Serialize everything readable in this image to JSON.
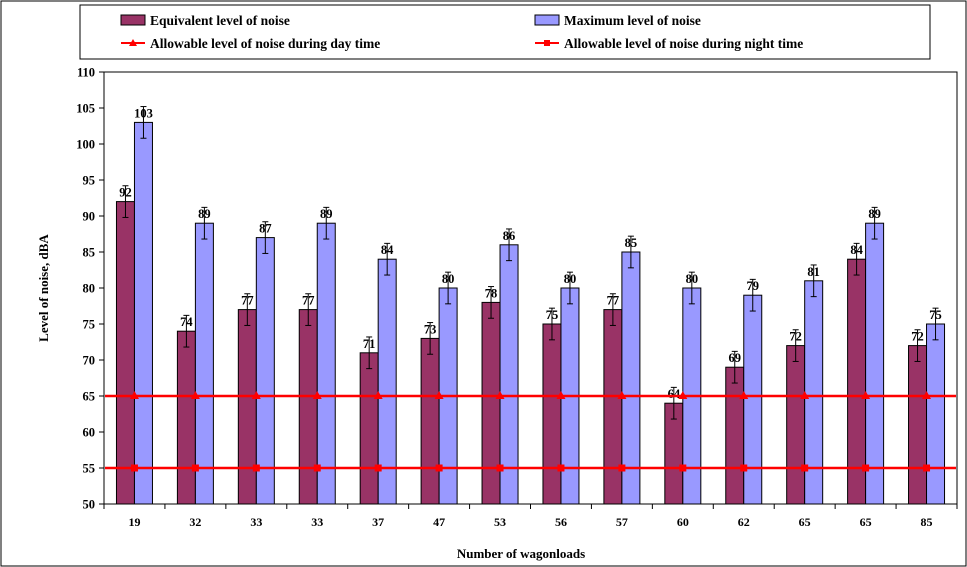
{
  "chart_data": {
    "type": "bar",
    "title": "",
    "xlabel": "Number of wagonloads",
    "ylabel": "Level of noise, dBA",
    "ylim": [
      50,
      110
    ],
    "yticks": [
      50,
      55,
      60,
      65,
      70,
      75,
      80,
      85,
      90,
      95,
      100,
      105,
      110
    ],
    "grid": false,
    "legend_position": "top",
    "categories": [
      "19",
      "32",
      "33",
      "33",
      "37",
      "47",
      "53",
      "56",
      "57",
      "60",
      "62",
      "65",
      "65",
      "85"
    ],
    "series": [
      {
        "name": "Equivalent level of noise",
        "kind": "bar",
        "color": "#993366",
        "values": [
          92,
          74,
          77,
          77,
          71,
          73,
          78,
          75,
          77,
          64,
          69,
          72,
          84,
          72
        ],
        "error_bars": true
      },
      {
        "name": "Maximum level of noise",
        "kind": "bar",
        "color": "#9999FF",
        "values": [
          103,
          89,
          87,
          89,
          84,
          80,
          86,
          80,
          85,
          80,
          79,
          81,
          89,
          75
        ],
        "error_bars": true
      },
      {
        "name": "Allowable level of noise during day time",
        "kind": "line",
        "marker": "triangle",
        "color": "#FF0000",
        "values": [
          65,
          65,
          65,
          65,
          65,
          65,
          65,
          65,
          65,
          65,
          65,
          65,
          65,
          65
        ]
      },
      {
        "name": "Allowable level of noise during night time",
        "kind": "line",
        "marker": "square",
        "color": "#FF0000",
        "values": [
          55,
          55,
          55,
          55,
          55,
          55,
          55,
          55,
          55,
          55,
          55,
          55,
          55,
          55
        ]
      }
    ]
  }
}
